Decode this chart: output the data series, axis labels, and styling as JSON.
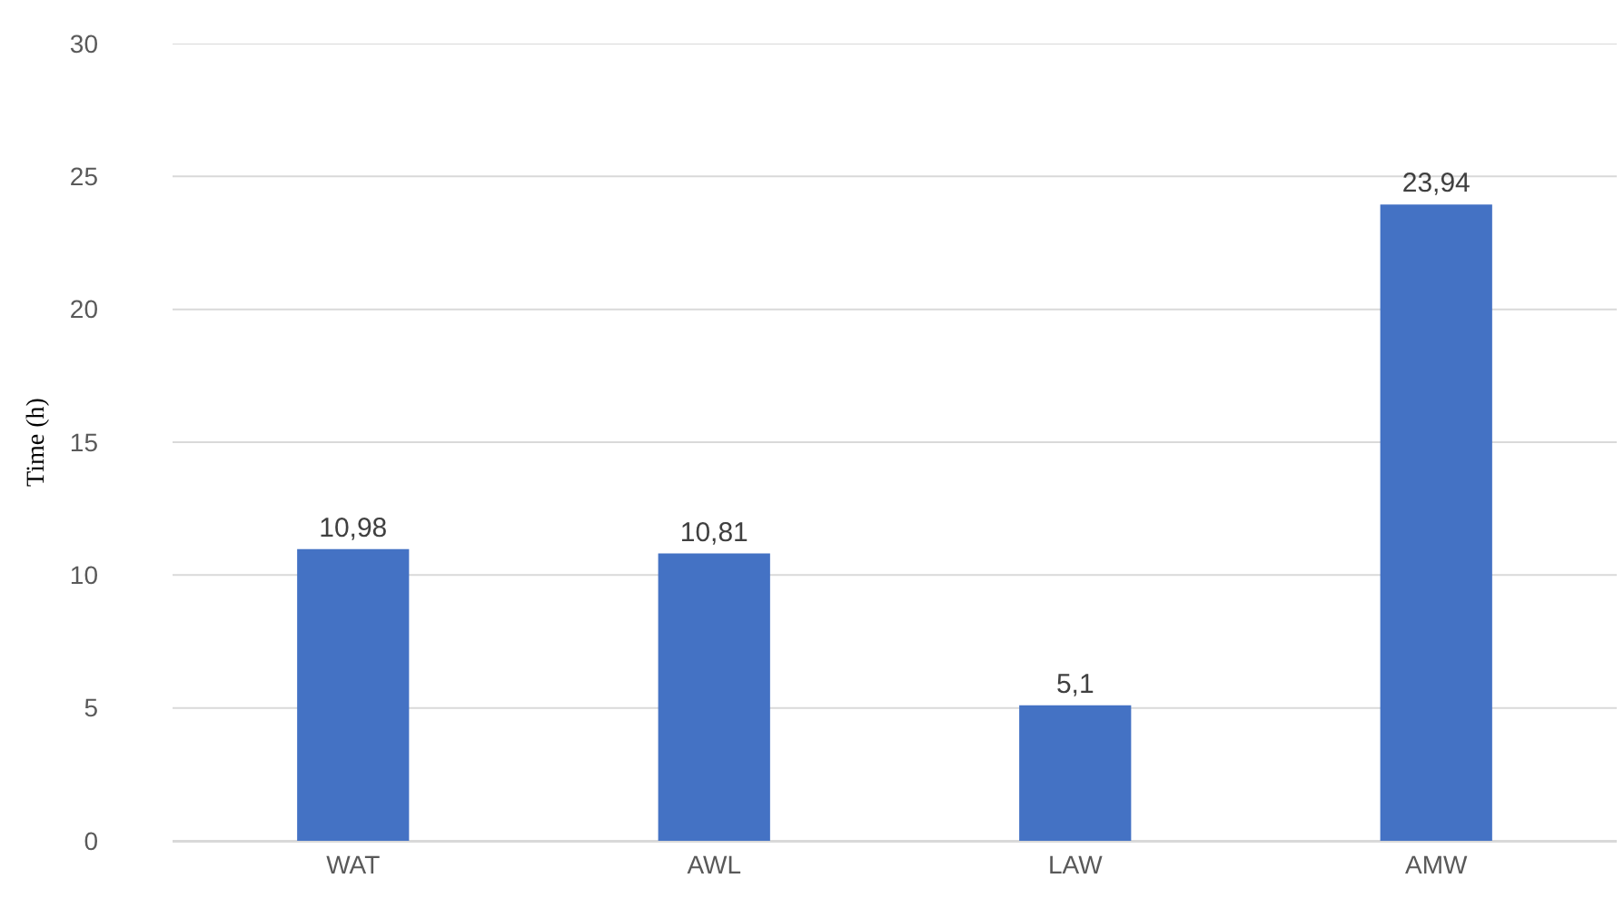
{
  "chart_data": {
    "type": "bar",
    "ylabel": "Time (h)",
    "categories": [
      "WAT",
      "AWL",
      "LAW",
      "AMW"
    ],
    "values": [
      10.98,
      10.81,
      5.1,
      23.94
    ],
    "value_labels": [
      "10,98",
      "10,81",
      "5,1",
      "23,94"
    ],
    "color": "#4472c4",
    "ylim": [
      0,
      30
    ],
    "yticks": [
      0,
      5,
      10,
      15,
      20,
      25,
      30
    ],
    "grid": "y"
  }
}
